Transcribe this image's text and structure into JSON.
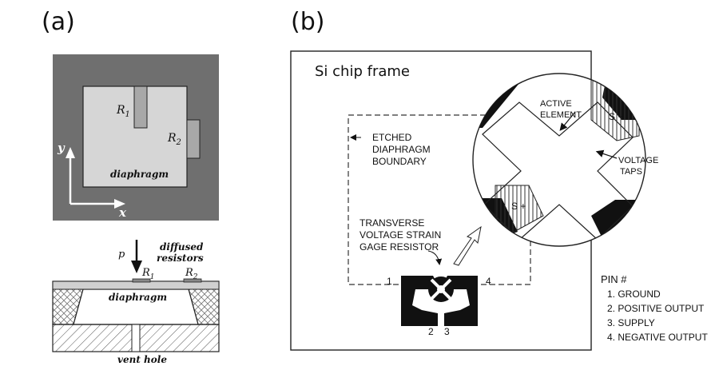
{
  "panel_a": {
    "label": "(a)",
    "top_view": {
      "r1": "R",
      "r1_sub": "1",
      "r2": "R",
      "r2_sub": "2",
      "diaphragm": "diaphragm",
      "axis_y": "y",
      "axis_x": "x",
      "frame_color": "#6f6f6f",
      "diaphragm_color": "#d6d6d6"
    },
    "cross_section": {
      "pressure": "p",
      "diffused_line1": "diffused",
      "diffused_line2": "resistors",
      "r1": "R",
      "r1_sub": "1",
      "r2": "R",
      "r2_sub": "2",
      "diaphragm": "diaphragm",
      "vent_hole": "vent hole"
    }
  },
  "panel_b": {
    "label": "(b)",
    "chip_frame": "Si chip frame",
    "etched_line1": "ETCHED",
    "etched_line2": "DIAPHRAGM",
    "etched_line3": "BOUNDARY",
    "transverse_line1": "TRANSVERSE",
    "transverse_line2": "VOLTAGE STRAIN",
    "transverse_line3": "GAGE RESISTOR",
    "active_line1": "ACTIVE",
    "active_line2": "ELEMENT",
    "s_minus": "S −",
    "s_plus": "S +",
    "voltage_line1": "VOLTAGE",
    "voltage_line2": "TAPS",
    "pin1": "1",
    "pin2": "2",
    "pin3": "3",
    "pin4": "4",
    "pin_header": "PIN #",
    "pins": [
      "1. GROUND",
      "2. POSITIVE OUTPUT",
      "3. SUPPLY",
      "4. NEGATIVE OUTPUT"
    ]
  }
}
